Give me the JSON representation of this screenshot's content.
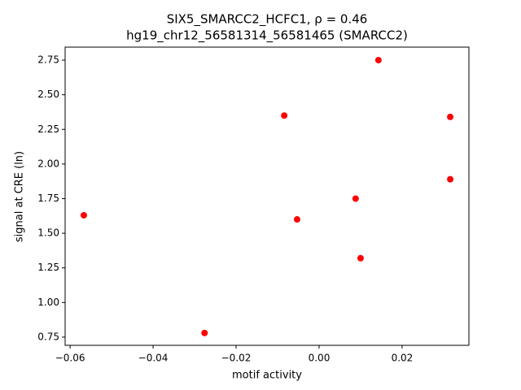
{
  "chart_data": {
    "type": "scatter",
    "title": [
      "SIX5_SMARCC2_HCFC1, ρ = 0.46",
      "hg19_chr12_56581314_56581465 (SMARCC2)"
    ],
    "x_label": "motif activity",
    "y_label": "signal at CRE (ln)",
    "series": [
      {
        "color": "#ff0000",
        "x": [
          0.0143,
          -0.0084,
          0.0316,
          0.0316,
          0.0088,
          -0.0567,
          -0.0053,
          0.01,
          -0.0276
        ],
        "values": [
          2.75,
          2.35,
          2.34,
          1.89,
          1.75,
          1.63,
          1.6,
          1.32,
          0.78
        ]
      }
    ],
    "xlim": [
      -0.0612,
      0.0361
    ],
    "ylim": [
      0.691,
      2.844
    ],
    "xticks": [
      {
        "value": -0.06,
        "label": "−0.06"
      },
      {
        "value": -0.04,
        "label": "−0.04"
      },
      {
        "value": -0.02,
        "label": "−0.02"
      },
      {
        "value": 0,
        "label": "0.00"
      },
      {
        "value": 0.02,
        "label": "0.02"
      }
    ],
    "yticks": [
      0.75,
      {
        "value": 1,
        "label": "1.00"
      },
      1.25,
      {
        "value": 1.5,
        "label": "1.50"
      },
      1.75,
      {
        "value": 2,
        "label": "2.00"
      },
      2.25,
      {
        "value": 2.5,
        "label": "2.50"
      },
      2.75
    ],
    "grid": false
  }
}
